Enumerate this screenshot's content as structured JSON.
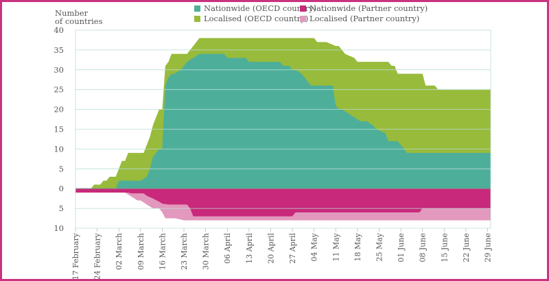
{
  "chart_data": {
    "type": "area",
    "ylabel_lines": [
      "Number",
      "of countries"
    ],
    "ylim": [
      -10,
      40
    ],
    "y_ticks": [
      {
        "value": 40,
        "label": "40"
      },
      {
        "value": 35,
        "label": "35"
      },
      {
        "value": 30,
        "label": "30"
      },
      {
        "value": 25,
        "label": "25"
      },
      {
        "value": 20,
        "label": "20"
      },
      {
        "value": 15,
        "label": "15"
      },
      {
        "value": 10,
        "label": "10"
      },
      {
        "value": 5,
        "label": "5"
      },
      {
        "value": 0,
        "label": "0"
      },
      {
        "value": -5,
        "label": "5"
      },
      {
        "value": -10,
        "label": "10"
      }
    ],
    "x_ticks": [
      "17 February",
      "24 February",
      "02 March",
      "09 March",
      "16 March",
      "23 March",
      "30 March",
      "06 April",
      "13 April",
      "20 April",
      "27 April",
      "04 May",
      "11 May",
      "18 May",
      "25 May",
      "01 June",
      "08 June",
      "15 June",
      "22 June",
      "29 June"
    ],
    "x_start": "17 February",
    "x_end": "30 June",
    "legend": [
      {
        "name": "Nationwide (OECD country)",
        "color": "#4daf9a"
      },
      {
        "name": "Localised (OECD country)",
        "color": "#98bb3b"
      },
      {
        "name": "Nationwide (Partner country)",
        "color": "#c8297a"
      },
      {
        "name": "Localised (Partner country)",
        "color": "#e398bd"
      }
    ],
    "series": [
      {
        "key": "oecd_nationwide",
        "color": "#4daf9a",
        "x": [
          "17 February",
          "01 March",
          "02 March",
          "09 March",
          "11 March",
          "12 March",
          "13 March",
          "15 March",
          "16 March",
          "17 March",
          "18 March",
          "19 March",
          "20 March",
          "22 March",
          "24 March",
          "26 March",
          "28 March",
          "05 April",
          "06 April",
          "12 April",
          "13 April",
          "23 April",
          "24 April",
          "26 April",
          "27 April",
          "28 April",
          "30 April",
          "01 May",
          "02 May",
          "03 May",
          "04 May",
          "06 May",
          "08 May",
          "10 May",
          "11 May",
          "12 May",
          "13 May",
          "15 May",
          "17 May",
          "19 May",
          "21 May",
          "23 May",
          "24 May",
          "27 May",
          "28 May",
          "29 May",
          "30 May",
          "31 May",
          "01 June",
          "02 June",
          "03 June",
          "30 June"
        ],
        "y": [
          0,
          0,
          2,
          2,
          3,
          5,
          8,
          10,
          10,
          26,
          28,
          29,
          29,
          30,
          32,
          33,
          34,
          34,
          33,
          33,
          32,
          32,
          31,
          31,
          30,
          30,
          29,
          28,
          27,
          26,
          26,
          26,
          26,
          26,
          21,
          20,
          20,
          19,
          18,
          17,
          17,
          16,
          15,
          14,
          12,
          12,
          12,
          12,
          11,
          10,
          9,
          9
        ]
      },
      {
        "key": "oecd_localised_top",
        "color": "#98bb3b",
        "x": [
          "17 February",
          "22 February",
          "23 February",
          "25 February",
          "26 February",
          "27 February",
          "28 February",
          "01 March",
          "02 March",
          "03 March",
          "04 March",
          "05 March",
          "10 March",
          "12 March",
          "13 March",
          "15 March",
          "16 March",
          "17 March",
          "18 March",
          "19 March",
          "24 March",
          "26 March",
          "27 March",
          "28 March",
          "04 May",
          "05 May",
          "06 May",
          "07 May",
          "08 May",
          "11 May",
          "12 May",
          "13 May",
          "14 May",
          "17 May",
          "18 May",
          "28 May",
          "29 May",
          "30 May",
          "31 May",
          "08 June",
          "09 June",
          "12 June",
          "13 June",
          "15 June",
          "30 June"
        ],
        "y": [
          0,
          0,
          1,
          1,
          2,
          2,
          3,
          3,
          5,
          7,
          7,
          9,
          9,
          13,
          16,
          20,
          20,
          31,
          32,
          34,
          34,
          36,
          37,
          38,
          38,
          37,
          37,
          37,
          37,
          36,
          36,
          35,
          34,
          33,
          32,
          32,
          31,
          31,
          29,
          29,
          26,
          26,
          25,
          25,
          25
        ]
      },
      {
        "key": "partner_nationwide",
        "color": "#c8297a",
        "x": [
          "17 February",
          "05 March",
          "06 March",
          "10 March",
          "11 March",
          "13 March",
          "15 March",
          "16 March",
          "18 March",
          "19 March",
          "20 March",
          "24 March",
          "25 March",
          "26 March",
          "26 April",
          "27 April",
          "28 April",
          "06 June",
          "07 June",
          "08 June",
          "30 June"
        ],
        "y": [
          -1,
          -1,
          -1.2,
          -1.2,
          -1.8,
          -2.5,
          -3.3,
          -3.8,
          -4,
          -4,
          -4,
          -4,
          -5,
          -7,
          -7,
          -7,
          -6,
          -6,
          -6,
          -5,
          -5
        ]
      },
      {
        "key": "partner_localised_bottom",
        "color": "#e398bd",
        "x": [
          "17 February",
          "04 March",
          "05 March",
          "06 March",
          "07 March",
          "08 March",
          "09 March",
          "10 March",
          "11 March",
          "12 March",
          "13 March",
          "14 March",
          "15 March",
          "16 March",
          "17 March",
          "18 March",
          "19 March",
          "20 March",
          "22 March",
          "23 March",
          "24 March",
          "30 June"
        ],
        "y": [
          -1,
          -1,
          -1.5,
          -2,
          -2.5,
          -3,
          -3,
          -3.5,
          -4,
          -4.5,
          -5,
          -5,
          -5,
          -6,
          -7.5,
          -7.5,
          -7.5,
          -7.5,
          -7.8,
          -8,
          -8,
          -8
        ]
      }
    ]
  }
}
